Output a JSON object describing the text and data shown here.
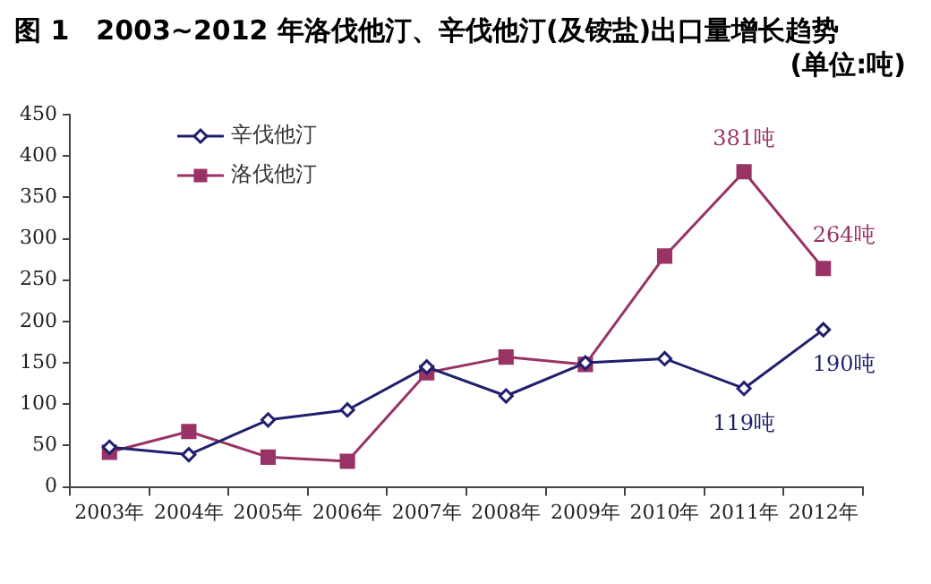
{
  "chart_data": {
    "type": "line",
    "title": "图 1　2003~2012 年洛伐他汀、辛伐他汀(及铵盐)出口量增长趋势",
    "subtitle": "(单位:吨)",
    "categories": [
      "2003年",
      "2004年",
      "2005年",
      "2006年",
      "2007年",
      "2008年",
      "2009年",
      "2010年",
      "2011年",
      "2012年"
    ],
    "series": [
      {
        "name": "辛伐他汀",
        "color": "#1f1f6e",
        "marker": "diamond",
        "values": [
          48,
          39,
          81,
          93,
          145,
          110,
          150,
          155,
          119,
          190
        ],
        "value_labels": [
          null,
          null,
          null,
          null,
          null,
          null,
          null,
          null,
          "119吨",
          "190吨"
        ]
      },
      {
        "name": "洛伐他汀",
        "color": "#993366",
        "marker": "square",
        "values": [
          42,
          67,
          36,
          31,
          138,
          157,
          148,
          279,
          381,
          264
        ],
        "value_labels": [
          null,
          null,
          null,
          null,
          null,
          null,
          null,
          null,
          "381吨",
          "264吨"
        ]
      }
    ],
    "ylim": [
      0,
      450
    ],
    "yticks": [
      0,
      50,
      100,
      150,
      200,
      250,
      300,
      350,
      400,
      450
    ],
    "grid": false,
    "legend": "top left",
    "line_style": "solid"
  }
}
